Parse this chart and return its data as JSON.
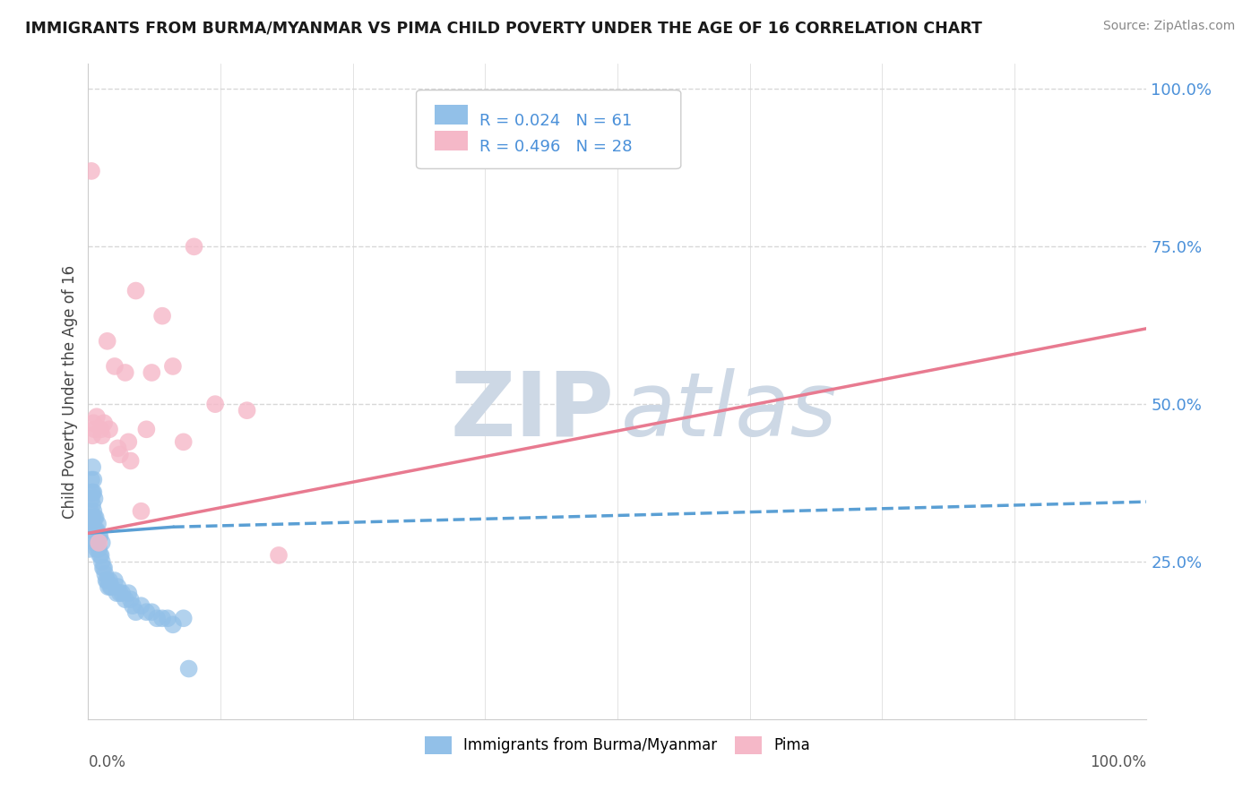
{
  "title": "IMMIGRANTS FROM BURMA/MYANMAR VS PIMA CHILD POVERTY UNDER THE AGE OF 16 CORRELATION CHART",
  "source": "Source: ZipAtlas.com",
  "ylabel": "Child Poverty Under the Age of 16",
  "legend_label1": "Immigrants from Burma/Myanmar",
  "legend_label2": "Pima",
  "legend_r1": "R = 0.024",
  "legend_n1": "N = 61",
  "legend_r2": "R = 0.496",
  "legend_n2": "N = 28",
  "color_blue": "#92c0e8",
  "color_pink": "#f5b8c8",
  "color_blue_line": "#5a9fd4",
  "color_pink_line": "#e87a90",
  "watermark_zip": "ZIP",
  "watermark_atlas": "atlas",
  "blue_scatter_x": [
    0.001,
    0.002,
    0.002,
    0.003,
    0.003,
    0.003,
    0.003,
    0.004,
    0.004,
    0.004,
    0.004,
    0.005,
    0.005,
    0.005,
    0.005,
    0.006,
    0.006,
    0.006,
    0.006,
    0.007,
    0.007,
    0.007,
    0.008,
    0.008,
    0.009,
    0.009,
    0.01,
    0.01,
    0.011,
    0.011,
    0.012,
    0.013,
    0.013,
    0.014,
    0.015,
    0.016,
    0.017,
    0.018,
    0.019,
    0.02,
    0.021,
    0.022,
    0.025,
    0.027,
    0.028,
    0.03,
    0.032,
    0.035,
    0.038,
    0.04,
    0.042,
    0.045,
    0.05,
    0.055,
    0.06,
    0.065,
    0.07,
    0.075,
    0.08,
    0.09,
    0.095
  ],
  "blue_scatter_y": [
    0.27,
    0.3,
    0.33,
    0.32,
    0.35,
    0.36,
    0.38,
    0.32,
    0.34,
    0.36,
    0.4,
    0.3,
    0.33,
    0.36,
    0.38,
    0.28,
    0.3,
    0.32,
    0.35,
    0.28,
    0.3,
    0.32,
    0.27,
    0.3,
    0.28,
    0.31,
    0.27,
    0.29,
    0.26,
    0.29,
    0.26,
    0.25,
    0.28,
    0.24,
    0.24,
    0.23,
    0.22,
    0.22,
    0.21,
    0.22,
    0.21,
    0.21,
    0.22,
    0.2,
    0.21,
    0.2,
    0.2,
    0.19,
    0.2,
    0.19,
    0.18,
    0.17,
    0.18,
    0.17,
    0.17,
    0.16,
    0.16,
    0.16,
    0.15,
    0.16,
    0.08
  ],
  "pink_scatter_x": [
    0.003,
    0.004,
    0.005,
    0.006,
    0.008,
    0.01,
    0.012,
    0.013,
    0.015,
    0.018,
    0.02,
    0.025,
    0.028,
    0.03,
    0.035,
    0.038,
    0.04,
    0.045,
    0.05,
    0.055,
    0.06,
    0.07,
    0.08,
    0.09,
    0.1,
    0.12,
    0.15,
    0.18
  ],
  "pink_scatter_y": [
    0.87,
    0.45,
    0.47,
    0.46,
    0.48,
    0.28,
    0.46,
    0.45,
    0.47,
    0.6,
    0.46,
    0.56,
    0.43,
    0.42,
    0.55,
    0.44,
    0.41,
    0.68,
    0.33,
    0.46,
    0.55,
    0.64,
    0.56,
    0.44,
    0.75,
    0.5,
    0.49,
    0.26
  ],
  "blue_line_x": [
    0.0,
    0.08,
    1.0
  ],
  "blue_line_y": [
    0.295,
    0.305,
    0.345
  ],
  "blue_line_solid_end": 0.08,
  "pink_line_x": [
    0.0,
    1.0
  ],
  "pink_line_y": [
    0.295,
    0.62
  ],
  "xmin": 0.0,
  "xmax": 1.0,
  "ymin": 0.0,
  "ymax": 1.04,
  "background_color": "#ffffff",
  "watermark_color": "#cdd8e5",
  "grid_color": "#d8d8d8",
  "ytick_color": "#4a90d9"
}
